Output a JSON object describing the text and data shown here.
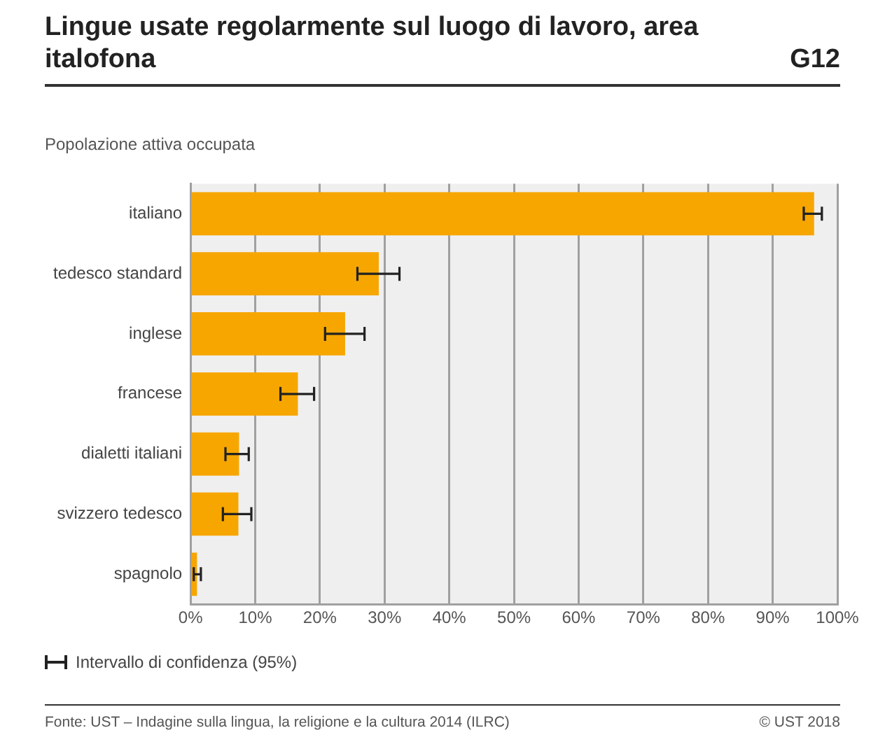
{
  "chart_data": {
    "type": "bar",
    "orientation": "horizontal",
    "title": "Lingue usate regolarmente sul luogo di lavoro, area italofona",
    "subtitle": "Popolazione attiva occupata",
    "categories": [
      "italiano",
      "tedesco standard",
      "inglese",
      "francese",
      "dialetti italiani",
      "svizzero tedesco",
      "spagnolo"
    ],
    "values": [
      96.4,
      29.1,
      23.9,
      16.6,
      7.5,
      7.4,
      1
    ],
    "errors": [
      [
        94.8,
        97.6
      ],
      [
        25.8,
        32.3
      ],
      [
        20.8,
        26.9
      ],
      [
        13.9,
        19.1
      ],
      [
        5.4,
        9.0
      ],
      [
        5.0,
        9.4
      ],
      [
        0.5,
        1.6
      ]
    ],
    "color": "#f7a600",
    "xlim": [
      0,
      100
    ],
    "xticks": [
      {
        "value": 0,
        "label": "0%"
      },
      {
        "value": 10,
        "label": "10%"
      },
      {
        "value": 20,
        "label": "20%"
      },
      {
        "value": 30,
        "label": "30%"
      },
      {
        "value": 40,
        "label": "40%"
      },
      {
        "value": 50,
        "label": "50%"
      },
      {
        "value": 60,
        "label": "60%"
      },
      {
        "value": 70,
        "label": "70%"
      },
      {
        "value": 80,
        "label": "80%"
      },
      {
        "value": 90,
        "label": "90%"
      },
      {
        "value": 100,
        "label": "100%"
      }
    ],
    "grid": "x",
    "annotations": [
      "G12",
      "Intervallo di confidenza (95%)",
      "Fonte: UST – Indagine sulla lingua, la religione e la cultura 2014 (ILRC)",
      "© UST 2018"
    ]
  }
}
